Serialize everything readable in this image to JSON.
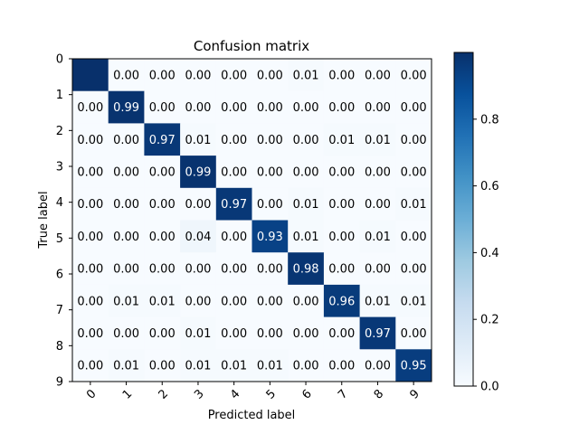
{
  "chart_data": {
    "type": "heatmap",
    "title": "Confusion matrix",
    "xlabel": "Predicted label",
    "ylabel": "True label",
    "x_categories": [
      "0",
      "1",
      "2",
      "3",
      "4",
      "5",
      "6",
      "7",
      "8",
      "9"
    ],
    "y_categories": [
      "0",
      "1",
      "2",
      "3",
      "4",
      "5",
      "6",
      "7",
      "8",
      "9"
    ],
    "colormap": "Blues",
    "low_color": "#f7fbff",
    "high_color": "#08306b",
    "values": [
      [
        1.0,
        0.0,
        0.0,
        0.0,
        0.0,
        0.0,
        0.01,
        0.0,
        0.0,
        0.0
      ],
      [
        0.0,
        0.99,
        0.0,
        0.0,
        0.0,
        0.0,
        0.0,
        0.0,
        0.0,
        0.0
      ],
      [
        0.0,
        0.0,
        0.97,
        0.01,
        0.0,
        0.0,
        0.0,
        0.01,
        0.01,
        0.0
      ],
      [
        0.0,
        0.0,
        0.0,
        0.99,
        0.0,
        0.0,
        0.0,
        0.0,
        0.0,
        0.0
      ],
      [
        0.0,
        0.0,
        0.0,
        0.0,
        0.97,
        0.0,
        0.01,
        0.0,
        0.0,
        0.01
      ],
      [
        0.0,
        0.0,
        0.0,
        0.04,
        0.0,
        0.93,
        0.01,
        0.0,
        0.01,
        0.0
      ],
      [
        0.0,
        0.0,
        0.0,
        0.0,
        0.0,
        0.0,
        0.98,
        0.0,
        0.0,
        0.0
      ],
      [
        0.0,
        0.01,
        0.01,
        0.0,
        0.0,
        0.0,
        0.0,
        0.96,
        0.01,
        0.01
      ],
      [
        0.0,
        0.0,
        0.0,
        0.01,
        0.0,
        0.0,
        0.0,
        0.0,
        0.97,
        0.0
      ],
      [
        0.0,
        0.01,
        0.0,
        0.01,
        0.01,
        0.01,
        0.0,
        0.0,
        0.0,
        0.95
      ]
    ],
    "cell_labels": [
      [
        "",
        "0.00",
        "0.00",
        "0.00",
        "0.00",
        "0.00",
        "0.01",
        "0.00",
        "0.00",
        "0.00"
      ],
      [
        "0.00",
        "0.99",
        "0.00",
        "0.00",
        "0.00",
        "0.00",
        "0.00",
        "0.00",
        "0.00",
        "0.00"
      ],
      [
        "0.00",
        "0.00",
        "0.97",
        "0.01",
        "0.00",
        "0.00",
        "0.00",
        "0.01",
        "0.01",
        "0.00"
      ],
      [
        "0.00",
        "0.00",
        "0.00",
        "0.99",
        "0.00",
        "0.00",
        "0.00",
        "0.00",
        "0.00",
        "0.00"
      ],
      [
        "0.00",
        "0.00",
        "0.00",
        "0.00",
        "0.97",
        "0.00",
        "0.01",
        "0.00",
        "0.00",
        "0.01"
      ],
      [
        "0.00",
        "0.00",
        "0.00",
        "0.04",
        "0.00",
        "0.93",
        "0.01",
        "0.00",
        "0.01",
        "0.00"
      ],
      [
        "0.00",
        "0.00",
        "0.00",
        "0.00",
        "0.00",
        "0.00",
        "0.98",
        "0.00",
        "0.00",
        "0.00"
      ],
      [
        "0.00",
        "0.01",
        "0.01",
        "0.00",
        "0.00",
        "0.00",
        "0.00",
        "0.96",
        "0.01",
        "0.01"
      ],
      [
        "0.00",
        "0.00",
        "0.00",
        "0.01",
        "0.00",
        "0.00",
        "0.00",
        "0.00",
        "0.97",
        "0.00"
      ],
      [
        "0.00",
        "0.01",
        "0.00",
        "0.01",
        "0.01",
        "0.01",
        "0.00",
        "0.00",
        "0.00",
        "0.95"
      ]
    ],
    "colorbar": {
      "range": [
        0.0,
        1.0
      ],
      "ticks": [
        0.0,
        0.2,
        0.4,
        0.6,
        0.8
      ],
      "tick_labels": [
        "0.0",
        "0.2",
        "0.4",
        "0.6",
        "0.8"
      ]
    }
  }
}
